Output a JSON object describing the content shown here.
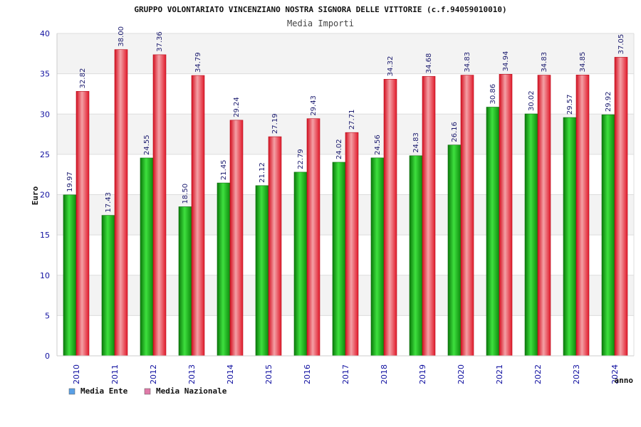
{
  "chart_data": {
    "type": "bar",
    "title": "GRUPPO VOLONTARIATO VINCENZIANO NOSTRA SIGNORA DELLE VITTORIE (c.f.94059010010)",
    "subtitle": "Media Importi",
    "xlabel": "anno",
    "ylabel": "Euro",
    "ylim": [
      0,
      40
    ],
    "yticks": [
      "0",
      "5",
      "10",
      "15",
      "20",
      "25",
      "30",
      "35",
      "40"
    ],
    "grid": true,
    "legend_position": "bottom-left",
    "categories": [
      "2010",
      "2011",
      "2012",
      "2013",
      "2014",
      "2015",
      "2016",
      "2017",
      "2018",
      "2019",
      "2020",
      "2021",
      "2022",
      "2023",
      "2024"
    ],
    "series": [
      {
        "name": "Media Ente",
        "color": "#1fb81f",
        "legend_color": "#5aa0e6",
        "values": [
          19.97,
          17.43,
          24.55,
          18.5,
          21.45,
          21.12,
          22.79,
          24.02,
          24.56,
          24.83,
          26.16,
          30.86,
          30.02,
          29.57,
          29.92
        ],
        "labels": [
          "19.97",
          "17.43",
          "24.55",
          "18.50",
          "21.45",
          "21.12",
          "22.79",
          "24.02",
          "24.56",
          "24.83",
          "26.16",
          "30.86",
          "30.02",
          "29.57",
          "29.92"
        ]
      },
      {
        "name": "Media Nazionale",
        "color": "#e8303a",
        "legend_color": "#e07aa8",
        "values": [
          32.82,
          38.0,
          37.36,
          34.79,
          29.24,
          27.19,
          29.43,
          27.71,
          34.32,
          34.68,
          34.83,
          34.94,
          34.83,
          34.85,
          37.05
        ],
        "labels": [
          "32.82",
          "38.00",
          "37.36",
          "34.79",
          "29.24",
          "27.19",
          "29.43",
          "27.71",
          "34.32",
          "34.68",
          "34.83",
          "34.94",
          "34.83",
          "34.85",
          "37.05"
        ]
      }
    ]
  }
}
